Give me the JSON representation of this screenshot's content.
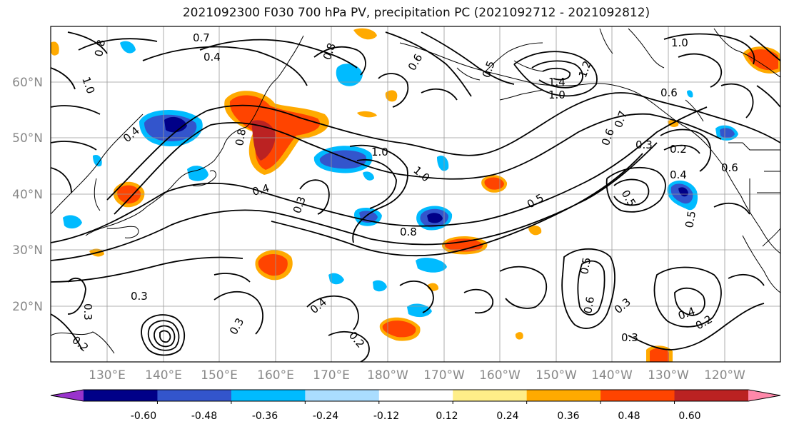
{
  "title": "2021092300 F030 700 hPa PV, precipitation PC (2021092712 - 2021092812)",
  "lat_labels": [
    "60°N",
    "50°N",
    "40°N",
    "30°N",
    "20°N"
  ],
  "lon_labels": [
    "130°E",
    "140°E",
    "150°E",
    "160°E",
    "170°E",
    "180°W",
    "170°W",
    "160°W",
    "150°W",
    "140°W",
    "130°W",
    "120°W"
  ],
  "contour_labels": [
    "0.7",
    "0.4",
    "1.0",
    "0.8",
    "0.8",
    "0.6",
    "0.5",
    "1.4",
    "1.2",
    "1.0",
    "0.6",
    "1.0",
    "0.7",
    "0.6",
    "0.3",
    "0.2",
    "0.6",
    "0.4",
    "0.4",
    "1.0",
    "1.0",
    "0.5",
    "0.8",
    "0.4",
    "0.3",
    "0.3",
    "0.4",
    "0.2",
    "0.3",
    "0.5",
    "0.3",
    "0.4",
    "0.2",
    "0.3",
    "0.3",
    "0.2",
    "0.5",
    "0.6",
    "0.8",
    "0.5"
  ],
  "colorbar": {
    "ticks": [
      "-0.60",
      "-0.48",
      "-0.36",
      "-0.24",
      "-0.12",
      "0.12",
      "0.24",
      "0.36",
      "0.48",
      "0.60"
    ],
    "colors": [
      "#9933cc",
      "#000088",
      "#3355cc",
      "#00bbff",
      "#aaddff",
      "#ffffff",
      "#ffee88",
      "#ffaa00",
      "#ff4400",
      "#bb2222",
      "#ff88aa"
    ]
  }
}
